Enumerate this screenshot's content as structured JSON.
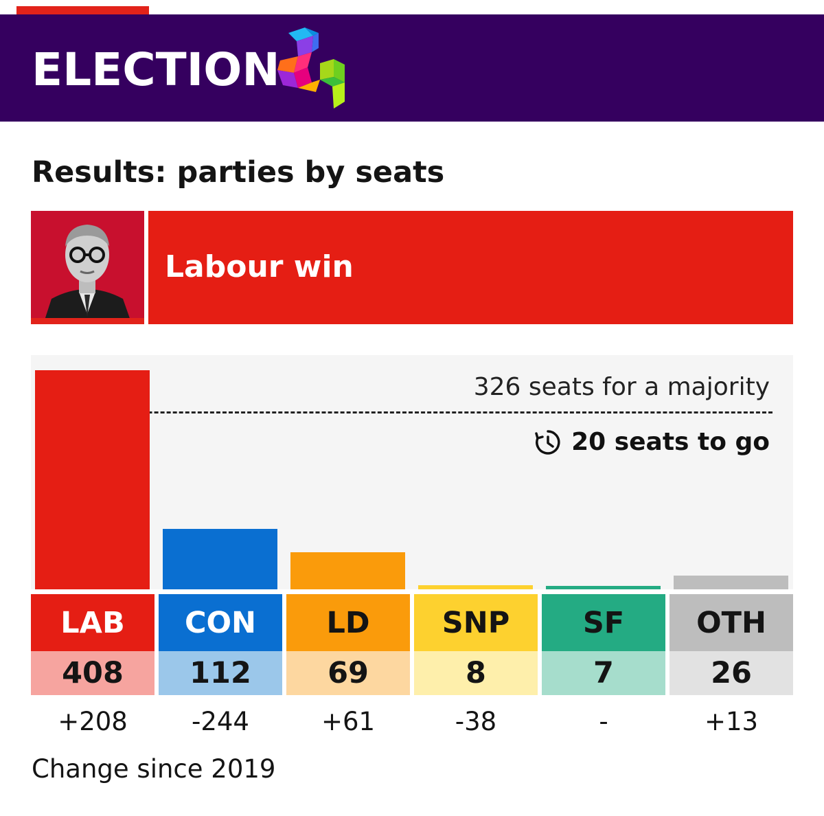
{
  "header": {
    "brand": "ELECTION"
  },
  "title": "Results: parties by seats",
  "banner": {
    "text": "Labour win"
  },
  "majority": {
    "label": "326 seats for a majority",
    "value": 326,
    "to_go": "20 seats to go"
  },
  "footnote": "Change since 2019",
  "colors": {
    "header_bg": "#35005f",
    "banner_bg": "#e51e14",
    "plot_bg": "#f5f5f5"
  },
  "chart_data": {
    "type": "bar",
    "title": "Results: parties by seats",
    "categories": [
      "LAB",
      "CON",
      "LD",
      "SNP",
      "SF",
      "OTH"
    ],
    "values": [
      408,
      112,
      69,
      8,
      7,
      26
    ],
    "seat_labels": [
      "408",
      "112",
      "69",
      "8",
      "7",
      "26"
    ],
    "changes": [
      "+208",
      "-244",
      "+61",
      "-38",
      "-",
      "+13"
    ],
    "bar_colors": [
      "#e51e14",
      "#0a6fd1",
      "#fa9b0b",
      "#fdd12f",
      "#24ab83",
      "#bdbdbd"
    ],
    "label_colors": [
      "#e51e14",
      "#0a6fd1",
      "#fa9b0b",
      "#fdd12f",
      "#24ab83",
      "#bdbdbd"
    ],
    "label_text_colors": [
      "#ffffff",
      "#ffffff",
      "#141414",
      "#141414",
      "#141414",
      "#141414"
    ],
    "seat_cell_colors": [
      "#f6a49f",
      "#9bc7ea",
      "#fdd7a0",
      "#feefab",
      "#a6ddcc",
      "#e2e2e2"
    ],
    "majority_line": 326,
    "ylim": [
      0,
      408
    ],
    "grid": false
  }
}
